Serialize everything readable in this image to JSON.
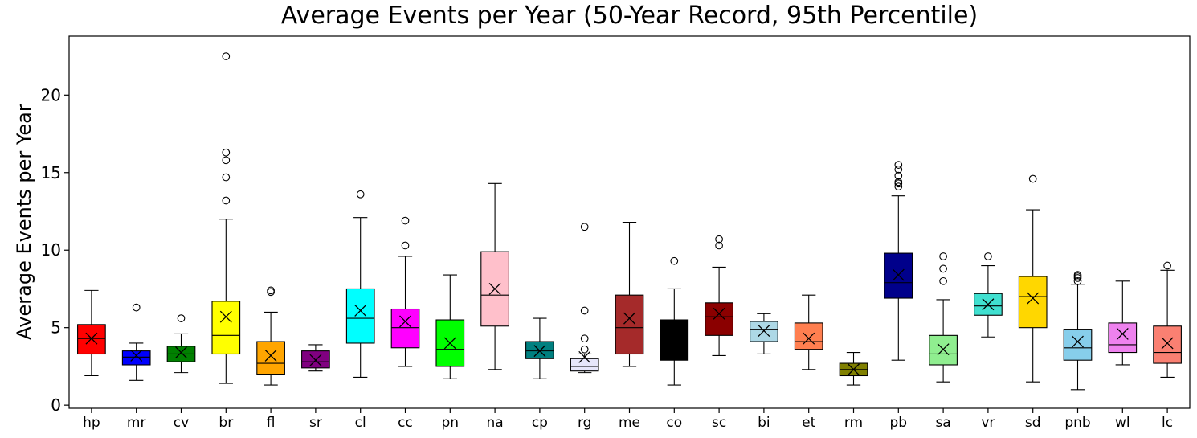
{
  "chart_data": {
    "type": "boxplot",
    "title": "Average Events per Year (50-Year Record, 95th Percentile)",
    "xlabel": "",
    "ylabel": "Average Events per Year",
    "ylim": [
      -0.2,
      23.8
    ],
    "yticks": [
      0,
      5,
      10,
      15,
      20
    ],
    "grid": false,
    "legend": "none",
    "mean_marker": "x",
    "series": [
      {
        "category": "hp",
        "color": "#ff0000",
        "whisker_low": 1.9,
        "q1": 3.3,
        "median": 4.3,
        "q3": 5.2,
        "whisker_high": 7.4,
        "mean": 4.3,
        "outliers": []
      },
      {
        "category": "mr",
        "color": "#0000ff",
        "whisker_low": 1.6,
        "q1": 2.6,
        "median": 3.1,
        "q3": 3.5,
        "whisker_high": 4.0,
        "mean": 3.2,
        "outliers": [
          6.3
        ]
      },
      {
        "category": "cv",
        "color": "#008000",
        "whisker_low": 2.1,
        "q1": 2.8,
        "median": 3.3,
        "q3": 3.8,
        "whisker_high": 4.6,
        "mean": 3.4,
        "outliers": [
          5.6
        ]
      },
      {
        "category": "br",
        "color": "#ffff00",
        "whisker_low": 1.4,
        "q1": 3.3,
        "median": 4.5,
        "q3": 6.7,
        "whisker_high": 12.0,
        "mean": 5.7,
        "outliers": [
          13.2,
          14.7,
          15.8,
          16.3,
          22.5
        ]
      },
      {
        "category": "fl",
        "color": "#ffa500",
        "whisker_low": 1.3,
        "q1": 2.0,
        "median": 2.7,
        "q3": 4.1,
        "whisker_high": 6.0,
        "mean": 3.2,
        "outliers": [
          7.3,
          7.4
        ]
      },
      {
        "category": "sr",
        "color": "#800080",
        "whisker_low": 2.2,
        "q1": 2.4,
        "median": 2.8,
        "q3": 3.5,
        "whisker_high": 3.9,
        "mean": 2.9,
        "outliers": []
      },
      {
        "category": "cl",
        "color": "#00ffff",
        "whisker_low": 1.8,
        "q1": 4.0,
        "median": 5.6,
        "q3": 7.5,
        "whisker_high": 12.1,
        "mean": 6.1,
        "outliers": [
          13.6
        ]
      },
      {
        "category": "cc",
        "color": "#ff00ff",
        "whisker_low": 2.5,
        "q1": 3.7,
        "median": 5.0,
        "q3": 6.2,
        "whisker_high": 9.6,
        "mean": 5.4,
        "outliers": [
          10.3,
          11.9
        ]
      },
      {
        "category": "pn",
        "color": "#00ff00",
        "whisker_low": 1.7,
        "q1": 2.5,
        "median": 3.6,
        "q3": 5.5,
        "whisker_high": 8.4,
        "mean": 4.0,
        "outliers": []
      },
      {
        "category": "na",
        "color": "#ffc0cb",
        "whisker_low": 2.3,
        "q1": 5.1,
        "median": 7.1,
        "q3": 9.9,
        "whisker_high": 14.3,
        "mean": 7.5,
        "outliers": []
      },
      {
        "category": "cp",
        "color": "#008080",
        "whisker_low": 1.7,
        "q1": 3.0,
        "median": 3.5,
        "q3": 4.1,
        "whisker_high": 5.6,
        "mean": 3.5,
        "outliers": []
      },
      {
        "category": "rg",
        "color": "#e6e6fa",
        "whisker_low": 2.1,
        "q1": 2.2,
        "median": 2.5,
        "q3": 3.0,
        "whisker_high": 3.3,
        "mean": 3.1,
        "outliers": [
          3.6,
          4.3,
          6.1,
          11.5
        ]
      },
      {
        "category": "me",
        "color": "#a52a2a",
        "whisker_low": 2.5,
        "q1": 3.3,
        "median": 5.0,
        "q3": 7.1,
        "whisker_high": 11.8,
        "mean": 5.6,
        "outliers": []
      },
      {
        "category": "co",
        "color": "#000000",
        "whisker_low": 1.3,
        "q1": 2.9,
        "median": 5.4,
        "q3": 5.5,
        "whisker_high": 7.5,
        "mean": 4.6,
        "outliers": [
          9.3
        ]
      },
      {
        "category": "sc",
        "color": "#8b0000",
        "whisker_low": 3.2,
        "q1": 4.5,
        "median": 5.7,
        "q3": 6.6,
        "whisker_high": 8.9,
        "mean": 5.9,
        "outliers": [
          10.3,
          10.7
        ]
      },
      {
        "category": "bi",
        "color": "#add8e6",
        "whisker_low": 3.3,
        "q1": 4.1,
        "median": 4.9,
        "q3": 5.4,
        "whisker_high": 5.9,
        "mean": 4.8,
        "outliers": []
      },
      {
        "category": "et",
        "color": "#ff7f50",
        "whisker_low": 2.3,
        "q1": 3.6,
        "median": 4.1,
        "q3": 5.3,
        "whisker_high": 7.1,
        "mean": 4.3,
        "outliers": []
      },
      {
        "category": "rm",
        "color": "#808000",
        "whisker_low": 1.3,
        "q1": 1.9,
        "median": 2.3,
        "q3": 2.7,
        "whisker_high": 3.4,
        "mean": 2.3,
        "outliers": []
      },
      {
        "category": "pb",
        "color": "#00008b",
        "whisker_low": 2.9,
        "q1": 6.9,
        "median": 7.9,
        "q3": 9.8,
        "whisker_high": 13.5,
        "mean": 8.4,
        "outliers": [
          14.1,
          14.3,
          14.4,
          14.8,
          15.2,
          15.5
        ]
      },
      {
        "category": "sa",
        "color": "#90ee90",
        "whisker_low": 1.5,
        "q1": 2.6,
        "median": 3.3,
        "q3": 4.5,
        "whisker_high": 6.8,
        "mean": 3.6,
        "outliers": [
          8.0,
          8.8,
          9.6
        ]
      },
      {
        "category": "vr",
        "color": "#40e0d0",
        "whisker_low": 4.4,
        "q1": 5.8,
        "median": 6.4,
        "q3": 7.2,
        "whisker_high": 9.0,
        "mean": 6.5,
        "outliers": [
          9.6
        ]
      },
      {
        "category": "sd",
        "color": "#ffd700",
        "whisker_low": 1.5,
        "q1": 5.0,
        "median": 7.0,
        "q3": 8.3,
        "whisker_high": 12.6,
        "mean": 6.9,
        "outliers": [
          14.6
        ]
      },
      {
        "category": "pnb",
        "color": "#87ceeb",
        "whisker_low": 1.0,
        "q1": 2.9,
        "median": 3.7,
        "q3": 4.9,
        "whisker_high": 7.8,
        "mean": 4.1,
        "outliers": [
          8.0,
          8.2,
          8.3,
          8.4
        ]
      },
      {
        "category": "wl",
        "color": "#ee82ee",
        "whisker_low": 2.6,
        "q1": 3.4,
        "median": 3.9,
        "q3": 5.3,
        "whisker_high": 8.0,
        "mean": 4.6,
        "outliers": []
      },
      {
        "category": "lc",
        "color": "#fa8072",
        "whisker_low": 1.8,
        "q1": 2.7,
        "median": 3.4,
        "q3": 5.1,
        "whisker_high": 8.7,
        "mean": 4.0,
        "outliers": [
          9.0
        ]
      }
    ]
  }
}
